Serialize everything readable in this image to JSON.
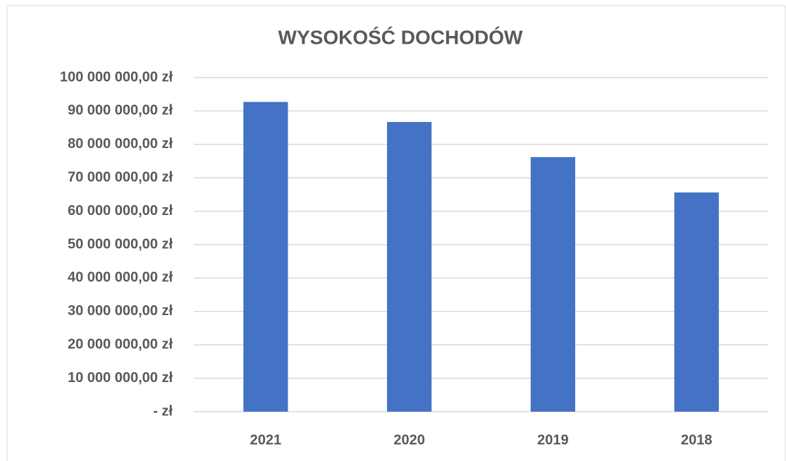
{
  "chart_data": {
    "type": "bar",
    "title": "WYSOKOŚĆ DOCHODÓW",
    "categories": [
      "2021",
      "2020",
      "2019",
      "2018"
    ],
    "values": [
      92700000,
      86700000,
      76200000,
      65600000
    ],
    "color": "#4472c4",
    "ylim": [
      0,
      100000000
    ],
    "yticks": [
      {
        "value": 0,
        "label": "-  zł"
      },
      {
        "value": 10000000,
        "label": "10 000 000,00 zł"
      },
      {
        "value": 20000000,
        "label": "20 000 000,00 zł"
      },
      {
        "value": 30000000,
        "label": "30 000 000,00 zł"
      },
      {
        "value": 40000000,
        "label": "40 000 000,00 zł"
      },
      {
        "value": 50000000,
        "label": "50 000 000,00 zł"
      },
      {
        "value": 60000000,
        "label": "60 000 000,00 zł"
      },
      {
        "value": 70000000,
        "label": "70 000 000,00 zł"
      },
      {
        "value": 80000000,
        "label": "80 000 000,00 zł"
      },
      {
        "value": 90000000,
        "label": "90 000 000,00 zł"
      },
      {
        "value": 100000000,
        "label": "100 000 000,00 zł"
      }
    ],
    "grid": true
  }
}
